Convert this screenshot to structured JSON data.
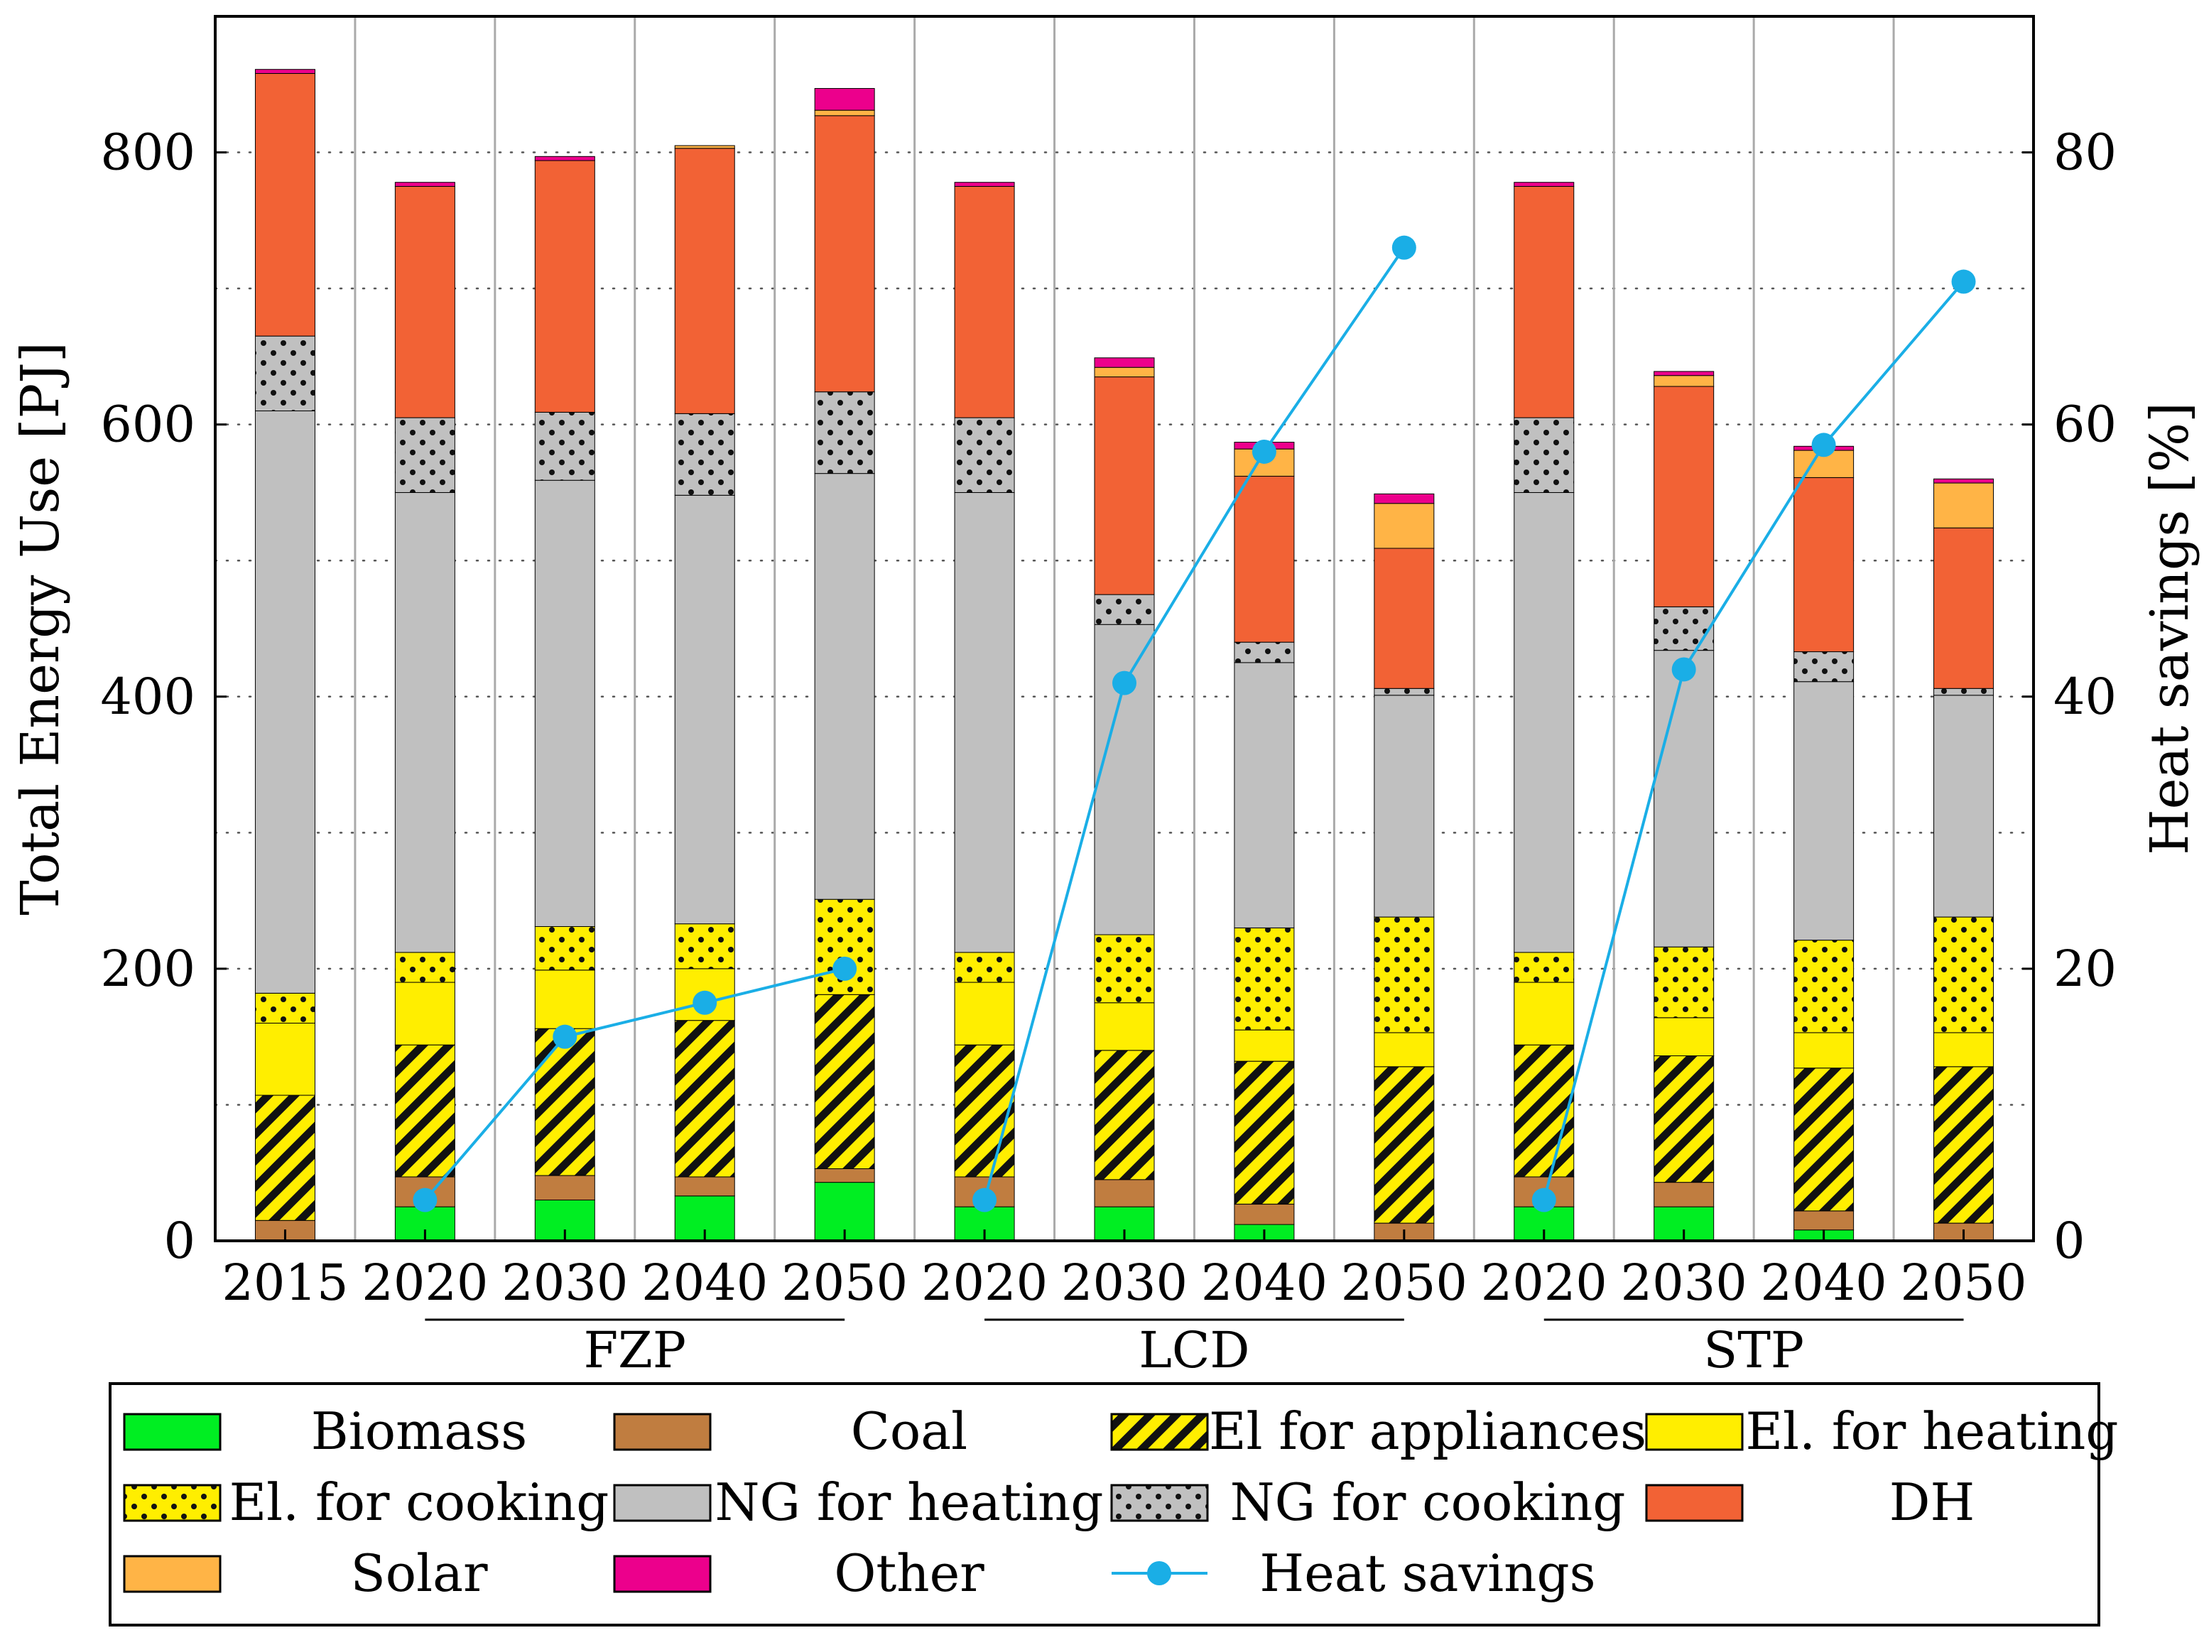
{
  "chart_data": {
    "type": "bar",
    "stacked": true,
    "ylabel": "Total Energy Use [PJ]",
    "y2label": "Heat savings [%]",
    "ylim": [
      0,
      900
    ],
    "y2lim": [
      0,
      90
    ],
    "yticks": [
      "0",
      "200",
      "400",
      "600",
      "800"
    ],
    "y2ticks": [
      "0",
      "20",
      "40",
      "60",
      "80"
    ],
    "categories": [
      "2015",
      "2020",
      "2030",
      "2040",
      "2050",
      "2020",
      "2030",
      "2040",
      "2050",
      "2020",
      "2030",
      "2040",
      "2050"
    ],
    "groups": [
      {
        "label": "FZP",
        "from": 1,
        "to": 4
      },
      {
        "label": "LCD",
        "from": 5,
        "to": 8
      },
      {
        "label": "STP",
        "from": 9,
        "to": 12
      }
    ],
    "series": [
      {
        "name": "Biomass",
        "color": "#00ee22",
        "pattern": "none",
        "values": [
          0,
          25,
          30,
          33,
          43,
          25,
          25,
          12,
          0,
          25,
          25,
          8,
          0
        ]
      },
      {
        "name": "Coal",
        "color": "#c07d40",
        "pattern": "none",
        "values": [
          15,
          22,
          18,
          14,
          10,
          22,
          20,
          15,
          13,
          22,
          18,
          14,
          13
        ]
      },
      {
        "name": "El for appliances",
        "color": "#ffee00",
        "pattern": "hatch",
        "values": [
          92,
          97,
          108,
          115,
          128,
          97,
          95,
          105,
          115,
          97,
          93,
          105,
          115
        ]
      },
      {
        "name": "El. for heating",
        "color": "#ffee00",
        "pattern": "none",
        "values": [
          53,
          46,
          43,
          38,
          0,
          46,
          35,
          23,
          25,
          46,
          28,
          26,
          25
        ]
      },
      {
        "name": "El. for cooking",
        "color": "#ffee00",
        "pattern": "dots",
        "values": [
          22,
          22,
          32,
          33,
          70,
          22,
          50,
          75,
          85,
          22,
          52,
          68,
          85
        ]
      },
      {
        "name": "NG for heating",
        "color": "#c0c0c0",
        "pattern": "none",
        "values": [
          428,
          338,
          328,
          315,
          313,
          338,
          228,
          195,
          163,
          338,
          218,
          190,
          163
        ]
      },
      {
        "name": "NG for cooking",
        "color": "#c0c0c0",
        "pattern": "dots",
        "values": [
          55,
          55,
          50,
          60,
          60,
          55,
          22,
          15,
          5,
          55,
          32,
          22,
          5
        ]
      },
      {
        "name": "DH",
        "color": "#f26235",
        "pattern": "none",
        "values": [
          193,
          170,
          185,
          195,
          203,
          170,
          160,
          122,
          103,
          170,
          162,
          128,
          118
        ]
      },
      {
        "name": "Solar",
        "color": "#ffb446",
        "pattern": "none",
        "values": [
          0,
          0,
          0,
          2,
          4,
          0,
          7,
          20,
          33,
          0,
          8,
          20,
          33
        ]
      },
      {
        "name": "Other",
        "color": "#ec008c",
        "pattern": "none",
        "values": [
          3,
          3,
          3,
          0,
          16,
          3,
          7,
          5,
          7,
          3,
          3,
          3,
          3
        ]
      }
    ],
    "line": {
      "name": "Heat savings",
      "color": "#1aaee6",
      "axis": "right",
      "values": [
        null,
        3,
        15,
        17.5,
        20,
        3,
        41,
        58,
        73,
        3,
        42,
        58.5,
        70.5
      ]
    },
    "legend_position": "bottom"
  }
}
